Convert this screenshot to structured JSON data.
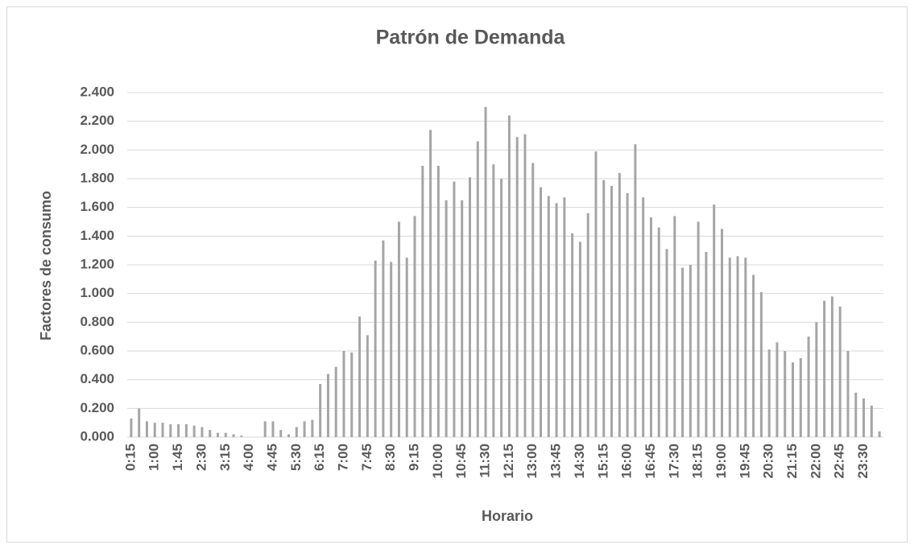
{
  "chart_data": {
    "type": "bar",
    "title": "Patrón de Demanda",
    "x_label": "Horario",
    "y_label": "Factores de consumo",
    "categories": [
      "0:15",
      null,
      null,
      "1:00",
      null,
      null,
      "1:45",
      null,
      null,
      "2:30",
      null,
      null,
      "3:15",
      null,
      null,
      "4:00",
      null,
      null,
      "4:45",
      null,
      null,
      "5:30",
      null,
      null,
      "6:15",
      null,
      null,
      "7:00",
      null,
      null,
      "7:45",
      null,
      null,
      "8:30",
      null,
      null,
      "9:15",
      null,
      null,
      "10:00",
      null,
      null,
      "10:45",
      null,
      null,
      "11:30",
      null,
      null,
      "12:15",
      null,
      null,
      "13:00",
      null,
      null,
      "13:45",
      null,
      null,
      "14:30",
      null,
      null,
      "15:15",
      null,
      null,
      "16:00",
      null,
      null,
      "16:45",
      null,
      null,
      "17:30",
      null,
      null,
      "18:15",
      null,
      null,
      "19:00",
      null,
      null,
      "19:45",
      null,
      null,
      "20:30",
      null,
      null,
      "21:15",
      null,
      null,
      "22:00",
      null,
      null,
      "22:45",
      null,
      null,
      "23:30",
      null,
      null
    ],
    "values": [
      0.13,
      0.2,
      0.11,
      0.1,
      0.1,
      0.09,
      0.09,
      0.09,
      0.08,
      0.07,
      0.05,
      0.03,
      0.03,
      0.02,
      0.01,
      0,
      0,
      0.11,
      0.11,
      0.05,
      0.02,
      0.07,
      0.11,
      0.12,
      0.37,
      0.44,
      0.49,
      0.6,
      0.59,
      0.84,
      0.71,
      1.23,
      1.37,
      1.22,
      1.5,
      1.25,
      1.54,
      1.89,
      2.14,
      1.89,
      1.65,
      1.78,
      1.65,
      1.81,
      2.06,
      2.3,
      1.9,
      1.8,
      2.24,
      2.09,
      2.11,
      1.91,
      1.74,
      1.68,
      1.63,
      1.67,
      1.42,
      1.36,
      1.56,
      1.99,
      1.79,
      1.75,
      1.84,
      1.7,
      2.04,
      1.67,
      1.53,
      1.46,
      1.31,
      1.54,
      1.18,
      1.2,
      1.5,
      1.29,
      1.62,
      1.45,
      1.25,
      1.26,
      1.25,
      1.13,
      1.01,
      0.61,
      0.66,
      0.6,
      0.52,
      0.55,
      0.7,
      0.8,
      0.95,
      0.98,
      0.91,
      0.6,
      0.31,
      0.27,
      0.22,
      0.04
    ],
    "color": "#a5a5a5",
    "ylim": [
      0,
      2.4
    ],
    "yticks": [
      {
        "value": 0,
        "label": "0.000"
      },
      {
        "value": 0.2,
        "label": "0.200"
      },
      {
        "value": 0.4,
        "label": "0.400"
      },
      {
        "value": 0.6,
        "label": "0.600"
      },
      {
        "value": 0.8,
        "label": "0.800"
      },
      {
        "value": 1,
        "label": "1.000"
      },
      {
        "value": 1.2,
        "label": "1.200"
      },
      {
        "value": 1.4,
        "label": "1.400"
      },
      {
        "value": 1.6,
        "label": "1.600"
      },
      {
        "value": 1.8,
        "label": "1.800"
      },
      {
        "value": 2,
        "label": "2.000"
      },
      {
        "value": 2.2,
        "label": "2.200"
      },
      {
        "value": 2.4,
        "label": "2.400"
      }
    ],
    "grid": true
  }
}
